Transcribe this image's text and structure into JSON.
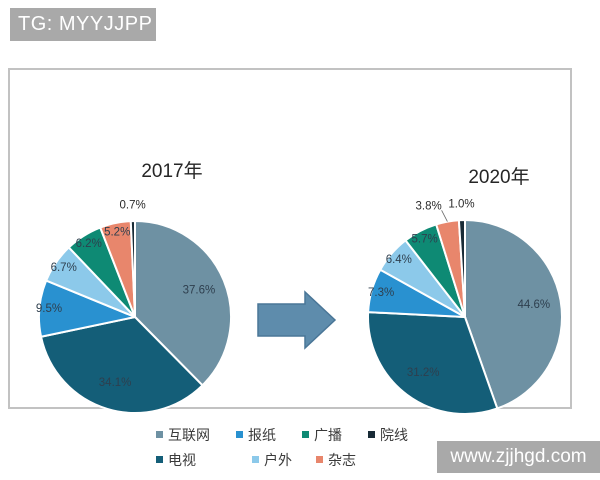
{
  "header": {
    "tag": "TG: MYYJJPP"
  },
  "watermark": {
    "site": "www.zjjhgd.com"
  },
  "chart_data": [
    {
      "type": "pie",
      "title": "2017年",
      "direction": "clockwise",
      "start_angle_deg": 0,
      "categories": [
        "互联网",
        "电视",
        "报纸",
        "户外",
        "广播",
        "杂志",
        "院线"
      ],
      "values": [
        37.6,
        34.1,
        9.5,
        6.7,
        6.2,
        5.2,
        0.7
      ],
      "labels": [
        "37.6%",
        "34.1%",
        "9.5%",
        "6.7%",
        "6.2%",
        "5.2%",
        "0.7%"
      ],
      "unit": "%",
      "legend_position": "bottom"
    },
    {
      "type": "pie",
      "title": "2020年",
      "direction": "clockwise",
      "start_angle_deg": 0,
      "categories": [
        "互联网",
        "电视",
        "报纸",
        "户外",
        "广播",
        "杂志",
        "院线"
      ],
      "values": [
        44.6,
        31.2,
        7.3,
        6.4,
        5.7,
        3.8,
        1.0
      ],
      "labels": [
        "44.6%",
        "31.2%",
        "7.3%",
        "6.4%",
        "5.7%",
        "3.8%",
        "1.0%"
      ],
      "unit": "%",
      "legend_position": "bottom"
    }
  ],
  "legend": {
    "rows": [
      [
        "互联网",
        "报纸",
        "广播",
        "院线"
      ],
      [
        "电视",
        "户外",
        "杂志"
      ]
    ]
  },
  "slugs": {
    "互联网": "internet",
    "电视": "tv",
    "报纸": "newspaper",
    "户外": "outdoor",
    "广播": "radio",
    "杂志": "magazine",
    "院线": "cinema"
  },
  "colors": {
    "互联网": "#6e91a3",
    "电视": "#145e78",
    "报纸": "#2991d0",
    "户外": "#8cc9ea",
    "广播": "#0e8a74",
    "杂志": "#e8866c",
    "院线": "#182b36",
    "arrow_fill": "#5e8cac",
    "arrow_border": "#4a7697",
    "bar_bg": "#a9a9a9",
    "panel_border": "#c2c2c2",
    "dark_slice_label": "#0f4a60"
  }
}
